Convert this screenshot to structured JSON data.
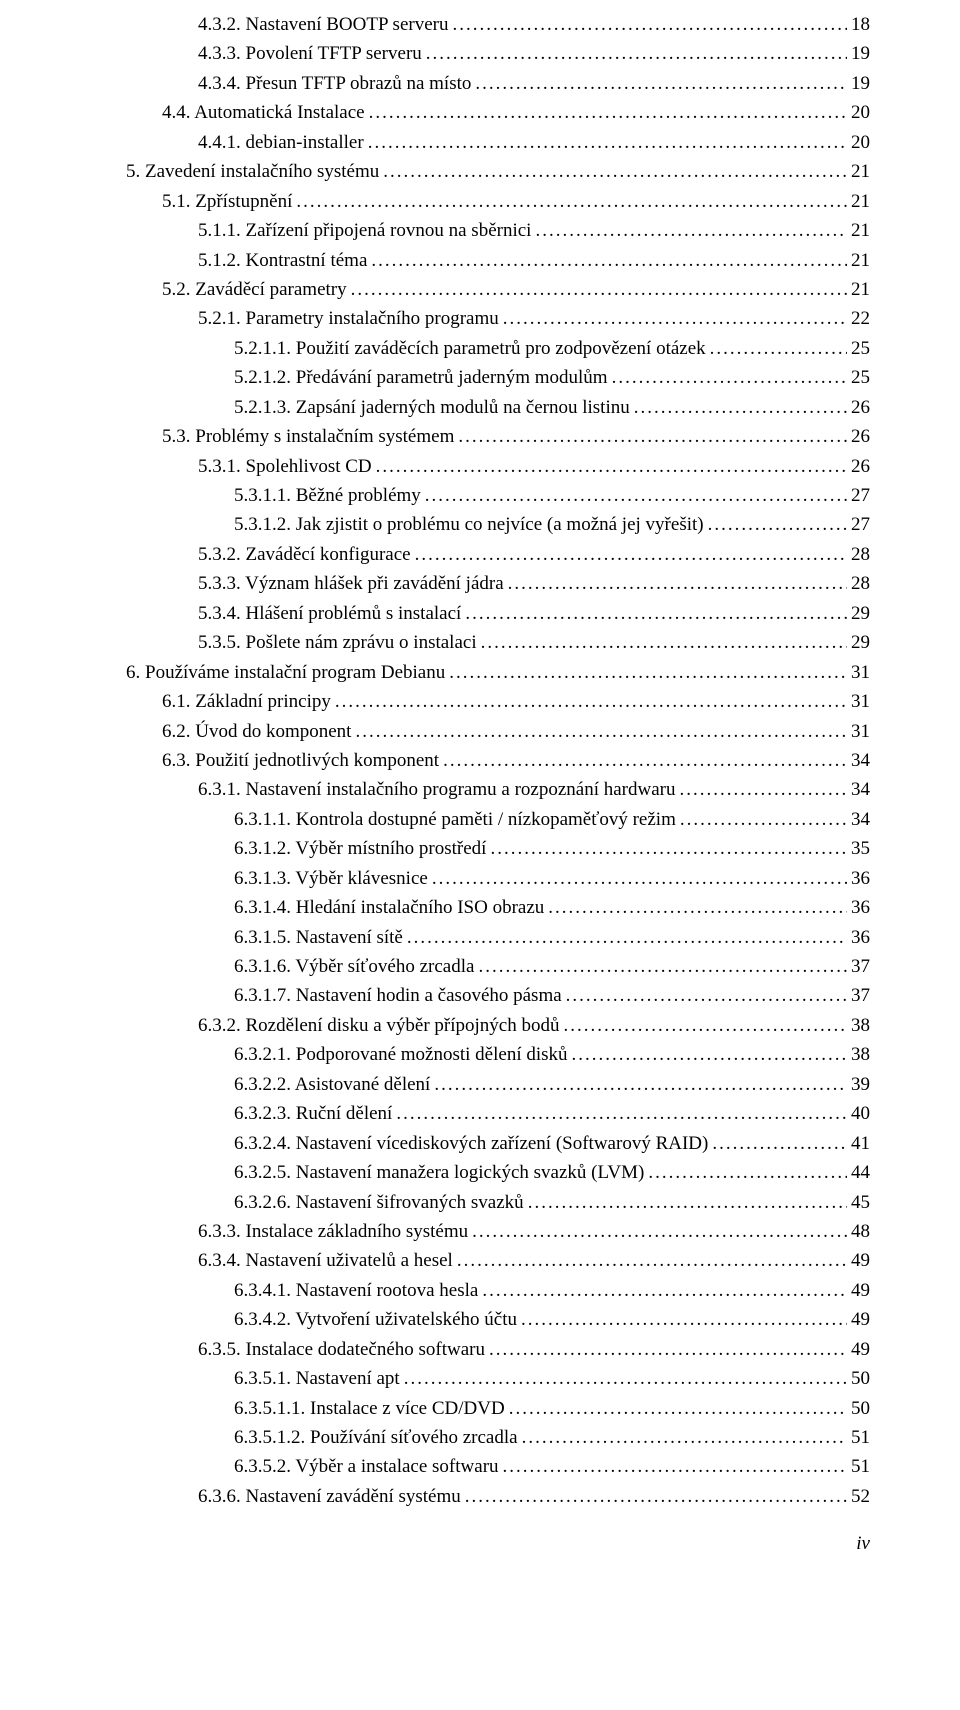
{
  "toc": {
    "entries": [
      {
        "indent": 3,
        "label": "4.3.2. Nastavení BOOTP serveru",
        "page": "18"
      },
      {
        "indent": 3,
        "label": "4.3.3. Povolení TFTP serveru",
        "page": "19"
      },
      {
        "indent": 3,
        "label": "4.3.4. Přesun TFTP obrazů na místo",
        "page": "19"
      },
      {
        "indent": 2,
        "label": "4.4. Automatická Instalace",
        "page": "20"
      },
      {
        "indent": 3,
        "label": "4.4.1. debian-installer",
        "page": "20"
      },
      {
        "indent": 1,
        "label": "5. Zavedení instalačního systému",
        "page": "21"
      },
      {
        "indent": 2,
        "label": "5.1. Zpřístupnění",
        "page": "21"
      },
      {
        "indent": 3,
        "label": "5.1.1. Zařízení připojená rovnou na sběrnici",
        "page": "21"
      },
      {
        "indent": 3,
        "label": "5.1.2. Kontrastní téma",
        "page": "21"
      },
      {
        "indent": 2,
        "label": "5.2. Zaváděcí parametry",
        "page": "21"
      },
      {
        "indent": 3,
        "label": "5.2.1. Parametry instalačního programu",
        "page": "22"
      },
      {
        "indent": 4,
        "label": "5.2.1.1. Použití zaváděcích parametrů pro zodpovězení otázek",
        "page": "25"
      },
      {
        "indent": 4,
        "label": "5.2.1.2. Předávání parametrů jaderným modulům",
        "page": "25"
      },
      {
        "indent": 4,
        "label": "5.2.1.3. Zapsání jaderných modulů na černou listinu",
        "page": "26"
      },
      {
        "indent": 2,
        "label": "5.3. Problémy s instalačním systémem",
        "page": "26"
      },
      {
        "indent": 3,
        "label": "5.3.1. Spolehlivost CD",
        "page": "26"
      },
      {
        "indent": 4,
        "label": "5.3.1.1. Běžné problémy",
        "page": "27"
      },
      {
        "indent": 4,
        "label": "5.3.1.2. Jak zjistit o problému co nejvíce (a možná jej vyřešit)",
        "page": "27"
      },
      {
        "indent": 3,
        "label": "5.3.2. Zaváděcí konfigurace",
        "page": "28"
      },
      {
        "indent": 3,
        "label": "5.3.3. Význam hlášek při zavádění jádra",
        "page": "28"
      },
      {
        "indent": 3,
        "label": "5.3.4. Hlášení problémů s instalací",
        "page": "29"
      },
      {
        "indent": 3,
        "label": "5.3.5. Pošlete nám zprávu o instalaci",
        "page": "29"
      },
      {
        "indent": 1,
        "label": "6. Používáme instalační program Debianu",
        "page": "31"
      },
      {
        "indent": 2,
        "label": "6.1. Základní principy",
        "page": "31"
      },
      {
        "indent": 2,
        "label": "6.2. Úvod do komponent",
        "page": "31"
      },
      {
        "indent": 2,
        "label": "6.3. Použití jednotlivých komponent",
        "page": "34"
      },
      {
        "indent": 3,
        "label": "6.3.1. Nastavení instalačního programu a rozpoznání hardwaru",
        "page": "34"
      },
      {
        "indent": 4,
        "label": "6.3.1.1. Kontrola dostupné paměti / nízkopaměťový režim",
        "page": "34"
      },
      {
        "indent": 4,
        "label": "6.3.1.2. Výběr místního prostředí",
        "page": "35"
      },
      {
        "indent": 4,
        "label": "6.3.1.3. Výběr klávesnice",
        "page": "36"
      },
      {
        "indent": 4,
        "label": "6.3.1.4. Hledání instalačního ISO obrazu",
        "page": "36"
      },
      {
        "indent": 4,
        "label": "6.3.1.5. Nastavení sítě",
        "page": "36"
      },
      {
        "indent": 4,
        "label": "6.3.1.6. Výběr síťového zrcadla",
        "page": "37"
      },
      {
        "indent": 4,
        "label": "6.3.1.7. Nastavení hodin a časového pásma",
        "page": "37"
      },
      {
        "indent": 3,
        "label": "6.3.2. Rozdělení disku a výběr přípojných bodů",
        "page": "38"
      },
      {
        "indent": 4,
        "label": "6.3.2.1. Podporované možnosti dělení disků",
        "page": "38"
      },
      {
        "indent": 4,
        "label": "6.3.2.2. Asistované dělení",
        "page": "39"
      },
      {
        "indent": 4,
        "label": "6.3.2.3. Ruční dělení",
        "page": "40"
      },
      {
        "indent": 4,
        "label": "6.3.2.4. Nastavení vícediskových zařízení (Softwarový RAID)",
        "page": "41"
      },
      {
        "indent": 4,
        "label": "6.3.2.5. Nastavení manažera logických svazků (LVM)",
        "page": "44"
      },
      {
        "indent": 4,
        "label": "6.3.2.6. Nastavení šifrovaných svazků",
        "page": "45"
      },
      {
        "indent": 3,
        "label": "6.3.3. Instalace základního systému",
        "page": "48"
      },
      {
        "indent": 3,
        "label": "6.3.4. Nastavení uživatelů a hesel",
        "page": "49"
      },
      {
        "indent": 4,
        "label": "6.3.4.1. Nastavení rootova hesla",
        "page": "49"
      },
      {
        "indent": 4,
        "label": "6.3.4.2. Vytvoření uživatelského účtu",
        "page": "49"
      },
      {
        "indent": 3,
        "label": "6.3.5. Instalace dodatečného softwaru",
        "page": "49"
      },
      {
        "indent": 4,
        "label": "6.3.5.1. Nastavení apt",
        "page": "50"
      },
      {
        "indent": 4,
        "label": "6.3.5.1.1. Instalace z více CD/DVD",
        "page": "50"
      },
      {
        "indent": 4,
        "label": "6.3.5.1.2. Používání síťového zrcadla",
        "page": "51"
      },
      {
        "indent": 4,
        "label": "6.3.5.2. Výběr a instalace softwaru",
        "page": "51"
      },
      {
        "indent": 3,
        "label": "6.3.6. Nastavení zavádění systému",
        "page": "52"
      }
    ]
  },
  "footer": {
    "page_number": "iv"
  }
}
